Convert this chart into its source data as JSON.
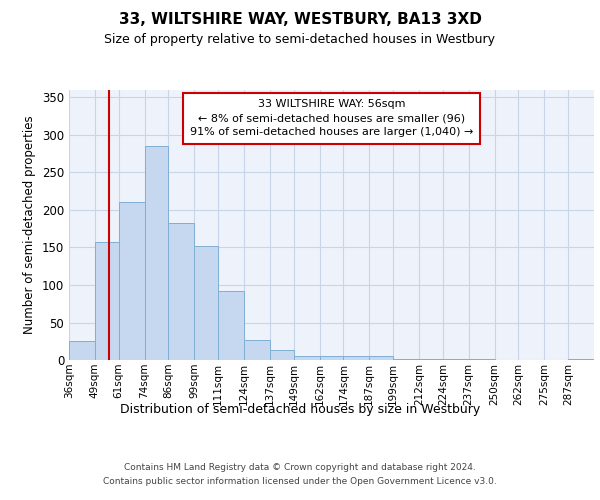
{
  "title": "33, WILTSHIRE WAY, WESTBURY, BA13 3XD",
  "subtitle": "Size of property relative to semi-detached houses in Westbury",
  "xlabel": "Distribution of semi-detached houses by size in Westbury",
  "ylabel": "Number of semi-detached properties",
  "bins": [
    "36sqm",
    "49sqm",
    "61sqm",
    "74sqm",
    "86sqm",
    "99sqm",
    "111sqm",
    "124sqm",
    "137sqm",
    "149sqm",
    "162sqm",
    "174sqm",
    "187sqm",
    "199sqm",
    "212sqm",
    "224sqm",
    "237sqm",
    "250sqm",
    "262sqm",
    "275sqm",
    "287sqm"
  ],
  "bin_edges": [
    36,
    49,
    61,
    74,
    86,
    99,
    111,
    124,
    137,
    149,
    162,
    174,
    187,
    199,
    212,
    224,
    237,
    250,
    262,
    275,
    287,
    300
  ],
  "values": [
    25,
    157,
    210,
    285,
    183,
    152,
    92,
    27,
    13,
    6,
    5,
    5,
    5,
    2,
    1,
    1,
    1,
    0,
    0,
    0,
    1
  ],
  "bar_color": "#c5d8f0",
  "bar_edge_color": "#7fafd4",
  "property_size": 56,
  "property_label": "33 WILTSHIRE WAY: 56sqm",
  "pct_smaller": 8,
  "pct_larger": 91,
  "n_smaller": 96,
  "n_larger": 1040,
  "vline_color": "#cc0000",
  "annotation_box_color": "#ffffff",
  "annotation_box_edge": "#cc0000",
  "grid_color": "#c8d4e8",
  "background_color": "#eef2fa",
  "ylim": [
    0,
    360
  ],
  "yticks": [
    0,
    50,
    100,
    150,
    200,
    250,
    300,
    350
  ],
  "footer_line1": "Contains HM Land Registry data © Crown copyright and database right 2024.",
  "footer_line2": "Contains public sector information licensed under the Open Government Licence v3.0."
}
